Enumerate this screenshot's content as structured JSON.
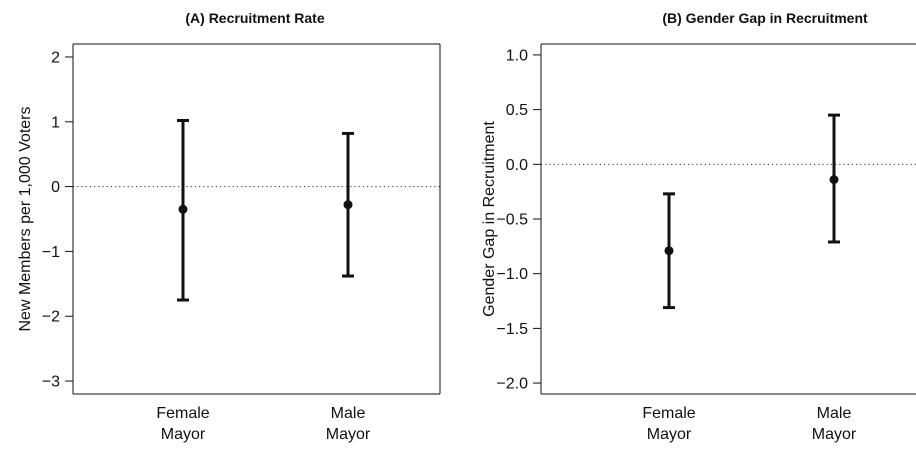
{
  "chart_data": [
    {
      "type": "errorbar",
      "title": "(A) Recruitment Rate",
      "xlabel": "",
      "ylabel": "New Members per 1,000 Voters",
      "ylim": [
        -3.2,
        2.2
      ],
      "yticks": [
        -3,
        -2,
        -1,
        0,
        1,
        2
      ],
      "ytick_labels": [
        "−3",
        "−2",
        "−1",
        "0",
        "1",
        "2"
      ],
      "reference_line": 0,
      "categories": [
        [
          "Female",
          "Mayor"
        ],
        [
          "Male",
          "Mayor"
        ]
      ],
      "points": [
        {
          "estimate": -0.35,
          "lower": -1.75,
          "upper": 1.02
        },
        {
          "estimate": -0.28,
          "lower": -1.38,
          "upper": 0.82
        }
      ]
    },
    {
      "type": "errorbar",
      "title": "(B) Gender Gap in Recruitment",
      "xlabel": "",
      "ylabel": "Gender Gap in Recruitment",
      "ylim": [
        -2.1,
        1.1
      ],
      "yticks": [
        -2.0,
        -1.5,
        -1.0,
        -0.5,
        0.0,
        0.5,
        1.0
      ],
      "ytick_labels": [
        "−2.0",
        "−1.5",
        "−1.0",
        "−0.5",
        "0.0",
        "0.5",
        "1.0"
      ],
      "reference_line": 0,
      "categories": [
        [
          "Female",
          "Mayor"
        ],
        [
          "Male",
          "Mayor"
        ]
      ],
      "points": [
        {
          "estimate": -0.79,
          "lower": -1.31,
          "upper": -0.27
        },
        {
          "estimate": -0.14,
          "lower": -0.71,
          "upper": 0.45
        }
      ]
    }
  ]
}
